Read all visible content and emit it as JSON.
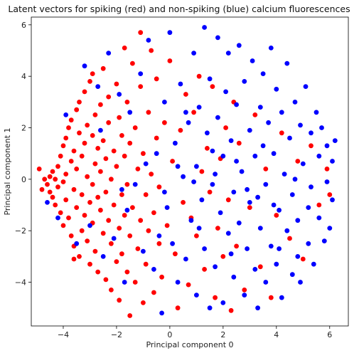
{
  "chart_data": {
    "type": "scatter",
    "title": "Latent vectors for spiking (red) and non-spiking (blue) calcium fluorescences",
    "xlabel": "Principal component 0",
    "ylabel": "Principal component 1",
    "xlim": [
      -5.2,
      6.7
    ],
    "ylim": [
      -5.7,
      6.3
    ],
    "xticks": [
      -4,
      -2,
      0,
      2,
      4,
      6
    ],
    "yticks": [
      -4,
      -2,
      0,
      2,
      4,
      6
    ],
    "grid": false,
    "series": [
      {
        "color": "#ff0000",
        "points": [
          [
            -4.7,
            0.0
          ],
          [
            -4.6,
            -0.2
          ],
          [
            -4.5,
            0.1
          ],
          [
            -4.5,
            -0.5
          ],
          [
            -4.4,
            0.3
          ],
          [
            -4.4,
            -0.7
          ],
          [
            -4.3,
            0.0
          ],
          [
            -4.3,
            -1.0
          ],
          [
            -4.2,
            0.5
          ],
          [
            -4.2,
            -0.3
          ],
          [
            -4.1,
            0.9
          ],
          [
            -4.1,
            -1.3
          ],
          [
            -4.0,
            1.3
          ],
          [
            -4.0,
            -0.1
          ],
          [
            -4.0,
            -1.8
          ],
          [
            -3.9,
            1.6
          ],
          [
            -3.9,
            0.2
          ],
          [
            -3.9,
            -0.8
          ],
          [
            -3.8,
            2.0
          ],
          [
            -3.8,
            -1.5
          ],
          [
            -3.7,
            2.3
          ],
          [
            -3.7,
            0.7
          ],
          [
            -3.7,
            -2.2
          ],
          [
            -3.6,
            1.1
          ],
          [
            -3.6,
            -0.4
          ],
          [
            -3.6,
            -2.6
          ],
          [
            -3.5,
            2.7
          ],
          [
            -3.5,
            0.4
          ],
          [
            -3.5,
            -1.1
          ],
          [
            -3.4,
            3.0
          ],
          [
            -3.4,
            1.8
          ],
          [
            -3.4,
            -3.0
          ],
          [
            -3.3,
            0.9
          ],
          [
            -3.3,
            -0.6
          ],
          [
            -3.3,
            -2.0
          ],
          [
            -3.2,
            3.4
          ],
          [
            -3.2,
            1.4
          ],
          [
            -3.2,
            -1.4
          ],
          [
            -3.1,
            2.1
          ],
          [
            -3.1,
            0.1
          ],
          [
            -3.1,
            -2.4
          ],
          [
            -3.0,
            3.8
          ],
          [
            -3.0,
            -0.9
          ],
          [
            -3.0,
            -3.3
          ],
          [
            -2.9,
            1.7
          ],
          [
            -2.9,
            -0.2
          ],
          [
            -2.9,
            -1.7
          ],
          [
            -2.8,
            2.5
          ],
          [
            -2.8,
            0.6
          ],
          [
            -2.8,
            -2.8
          ],
          [
            -2.7,
            -3.6
          ],
          [
            -2.7,
            1.2
          ],
          [
            -2.7,
            -0.7
          ],
          [
            -2.6,
            2.9
          ],
          [
            -2.6,
            0.3
          ],
          [
            -2.6,
            -1.2
          ],
          [
            -2.5,
            4.3
          ],
          [
            -2.5,
            1.5
          ],
          [
            -2.5,
            -2.1
          ],
          [
            -2.4,
            0.8
          ],
          [
            -2.4,
            -3.9
          ],
          [
            -2.4,
            -0.5
          ],
          [
            -2.3,
            2.2
          ],
          [
            -2.3,
            -1.6
          ],
          [
            -2.3,
            3.2
          ],
          [
            -2.2,
            0.0
          ],
          [
            -2.2,
            -2.5
          ],
          [
            -2.2,
            -4.3
          ],
          [
            -2.1,
            1.1
          ],
          [
            -2.1,
            -1.0
          ],
          [
            -2.0,
            3.7
          ],
          [
            -2.0,
            -3.2
          ],
          [
            -2.0,
            0.5
          ],
          [
            -1.9,
            -1.9
          ],
          [
            -1.9,
            2.4
          ],
          [
            -1.9,
            -4.7
          ],
          [
            -1.8,
            1.7
          ],
          [
            -1.8,
            -0.6
          ],
          [
            -1.8,
            -2.9
          ],
          [
            -1.7,
            5.1
          ],
          [
            -1.7,
            0.9
          ],
          [
            -1.7,
            -1.4
          ],
          [
            -1.6,
            3.0
          ],
          [
            -1.6,
            -3.6
          ],
          [
            -1.6,
            -0.2
          ],
          [
            -1.5,
            -5.3
          ],
          [
            -1.5,
            1.4
          ],
          [
            -1.5,
            -2.2
          ],
          [
            -1.4,
            4.5
          ],
          [
            -1.4,
            -1.1
          ],
          [
            -1.3,
            2.0
          ],
          [
            -1.3,
            -4.0
          ],
          [
            -1.2,
            0.4
          ],
          [
            -1.2,
            -2.7
          ],
          [
            -1.1,
            3.6
          ],
          [
            -1.1,
            -1.6
          ],
          [
            -1.0,
            -4.8
          ],
          [
            -1.0,
            1.0
          ],
          [
            -0.9,
            -0.6
          ],
          [
            -0.9,
            -3.3
          ],
          [
            -0.8,
            2.6
          ],
          [
            -0.8,
            -2.0
          ],
          [
            -0.7,
            5.0
          ],
          [
            -0.7,
            0.2
          ],
          [
            -0.6,
            -4.4
          ],
          [
            -0.6,
            -1.3
          ],
          [
            -0.5,
            3.9
          ],
          [
            -0.5,
            1.6
          ],
          [
            -0.4,
            -2.5
          ],
          [
            -0.4,
            -0.3
          ],
          [
            -0.3,
            -3.8
          ],
          [
            -0.2,
            2.2
          ],
          [
            -0.1,
            -1.8
          ],
          [
            0.0,
            4.6
          ],
          [
            0.1,
            0.7
          ],
          [
            0.2,
            -2.9
          ],
          [
            0.3,
            -5.0
          ],
          [
            0.4,
            1.9
          ],
          [
            0.5,
            -0.9
          ],
          [
            0.6,
            3.3
          ],
          [
            0.7,
            -4.1
          ],
          [
            0.8,
            -1.5
          ],
          [
            0.9,
            2.6
          ],
          [
            1.0,
            -2.2
          ],
          [
            1.1,
            4.0
          ],
          [
            1.2,
            0.3
          ],
          [
            1.3,
            -3.5
          ],
          [
            1.4,
            1.2
          ],
          [
            1.5,
            -0.5
          ],
          [
            1.6,
            3.6
          ],
          [
            1.7,
            -4.6
          ],
          [
            1.8,
            -1.9
          ],
          [
            1.9,
            0.8
          ],
          [
            2.0,
            -3.0
          ],
          [
            2.1,
            2.0
          ],
          [
            2.2,
            -0.8
          ],
          [
            2.3,
            -5.1
          ],
          [
            2.4,
            3.0
          ],
          [
            2.5,
            -2.6
          ],
          [
            2.6,
            1.4
          ],
          [
            2.8,
            -4.3
          ],
          [
            3.0,
            -1.1
          ],
          [
            3.2,
            2.5
          ],
          [
            3.4,
            -3.4
          ],
          [
            3.6,
            0.4
          ],
          [
            3.8,
            -4.6
          ],
          [
            4.0,
            -1.4
          ],
          [
            4.2,
            1.8
          ],
          [
            4.5,
            -2.3
          ],
          [
            4.8,
            0.7
          ],
          [
            5.0,
            -3.1
          ],
          [
            5.3,
            1.3
          ],
          [
            5.6,
            -1.0
          ],
          [
            5.9,
            0.4
          ],
          [
            6.0,
            -0.6
          ],
          [
            -4.9,
            0.4
          ],
          [
            -4.8,
            -0.4
          ],
          [
            -3.6,
            -3.1
          ],
          [
            -2.9,
            4.1
          ],
          [
            -1.1,
            5.7
          ]
        ]
      },
      {
        "color": "#0000ff",
        "points": [
          [
            -4.6,
            -0.9
          ],
          [
            -4.2,
            -1.5
          ],
          [
            -3.9,
            2.5
          ],
          [
            -3.5,
            -2.5
          ],
          [
            -3.2,
            4.4
          ],
          [
            -3.0,
            -1.8
          ],
          [
            -2.7,
            3.6
          ],
          [
            -2.5,
            -3.0
          ],
          [
            -2.3,
            4.9
          ],
          [
            -2.1,
            -2.3
          ],
          [
            -1.9,
            3.3
          ],
          [
            -1.7,
            -4.0
          ],
          [
            -1.5,
            2.6
          ],
          [
            -1.3,
            -0.2
          ],
          [
            -1.1,
            4.1
          ],
          [
            -1.0,
            -2.8
          ],
          [
            -0.8,
            5.4
          ],
          [
            -0.6,
            -3.5
          ],
          [
            -0.5,
            1.0
          ],
          [
            -0.3,
            -5.2
          ],
          [
            -0.2,
            3.0
          ],
          [
            -0.1,
            -1.1
          ],
          [
            0.0,
            5.7
          ],
          [
            0.1,
            -2.5
          ],
          [
            0.2,
            1.4
          ],
          [
            0.3,
            -4.0
          ],
          [
            0.4,
            3.7
          ],
          [
            0.5,
            0.1
          ],
          [
            0.6,
            -3.1
          ],
          [
            0.7,
            2.2
          ],
          [
            0.8,
            -1.6
          ],
          [
            0.9,
            4.9
          ],
          [
            1.0,
            0.5
          ],
          [
            1.0,
            -4.5
          ],
          [
            1.1,
            2.8
          ],
          [
            1.2,
            -0.8
          ],
          [
            1.3,
            5.9
          ],
          [
            1.3,
            -2.7
          ],
          [
            1.4,
            1.8
          ],
          [
            1.5,
            -5.0
          ],
          [
            1.5,
            3.9
          ],
          [
            1.6,
            -0.2
          ],
          [
            1.7,
            -3.4
          ],
          [
            1.8,
            2.4
          ],
          [
            1.8,
            5.5
          ],
          [
            1.9,
            -1.3
          ],
          [
            2.0,
            0.9
          ],
          [
            2.0,
            -4.8
          ],
          [
            2.1,
            3.4
          ],
          [
            2.2,
            -2.1
          ],
          [
            2.2,
            4.9
          ],
          [
            2.3,
            1.5
          ],
          [
            2.4,
            -0.5
          ],
          [
            2.4,
            -3.8
          ],
          [
            2.5,
            2.9
          ],
          [
            2.6,
            -1.7
          ],
          [
            2.6,
            5.2
          ],
          [
            2.7,
            0.3
          ],
          [
            2.8,
            -4.5
          ],
          [
            2.8,
            3.8
          ],
          [
            2.9,
            -2.7
          ],
          [
            3.0,
            1.9
          ],
          [
            3.0,
            -0.9
          ],
          [
            3.1,
            4.6
          ],
          [
            3.2,
            -3.5
          ],
          [
            3.2,
            0.9
          ],
          [
            3.3,
            -5.0
          ],
          [
            3.4,
            2.8
          ],
          [
            3.4,
            -1.9
          ],
          [
            3.5,
            4.1
          ],
          [
            3.6,
            -0.2
          ],
          [
            3.6,
            -4.0
          ],
          [
            3.7,
            2.2
          ],
          [
            3.8,
            -2.6
          ],
          [
            3.8,
            5.1
          ],
          [
            3.9,
            1.0
          ],
          [
            4.0,
            -3.3
          ],
          [
            4.0,
            3.5
          ],
          [
            4.1,
            -1.2
          ],
          [
            4.2,
            -4.6
          ],
          [
            4.2,
            2.6
          ],
          [
            4.3,
            0.2
          ],
          [
            4.4,
            -2.0
          ],
          [
            4.4,
            4.5
          ],
          [
            4.5,
            1.6
          ],
          [
            4.6,
            -3.7
          ],
          [
            4.6,
            -0.6
          ],
          [
            4.7,
            3.0
          ],
          [
            4.8,
            -1.6
          ],
          [
            4.9,
            2.1
          ],
          [
            4.9,
            -4.0
          ],
          [
            5.0,
            0.6
          ],
          [
            5.1,
            3.6
          ],
          [
            5.2,
            -2.5
          ],
          [
            5.3,
            1.8
          ],
          [
            5.3,
            -0.3
          ],
          [
            5.4,
            -3.3
          ],
          [
            5.5,
            2.6
          ],
          [
            5.6,
            -1.5
          ],
          [
            5.6,
            0.9
          ],
          [
            5.7,
            2.0
          ],
          [
            5.8,
            -2.4
          ],
          [
            5.9,
            -0.1
          ],
          [
            5.9,
            1.3
          ],
          [
            6.0,
            -1.9
          ],
          [
            6.1,
            0.7
          ],
          [
            6.1,
            -0.8
          ],
          [
            6.2,
            1.5
          ],
          [
            -1.8,
            -0.4
          ],
          [
            -0.4,
            -2.2
          ],
          [
            0.3,
            0.5
          ],
          [
            0.6,
            2.6
          ],
          [
            1.1,
            -1.9
          ],
          [
            1.7,
            0.2
          ],
          [
            2.3,
            -2.9
          ],
          [
            2.9,
            -0.4
          ],
          [
            3.5,
            1.3
          ],
          [
            4.1,
            -2.7
          ],
          [
            4.7,
            0.0
          ],
          [
            5.2,
            -1.1
          ],
          [
            -2.6,
            1.9
          ],
          [
            -1.6,
            -1.2
          ],
          [
            -0.9,
            0.6
          ],
          [
            -0.2,
            -0.5
          ],
          [
            0.9,
            -0.1
          ],
          [
            1.6,
            1.1
          ],
          [
            2.5,
            0.7
          ],
          [
            3.3,
            -0.7
          ],
          [
            3.9,
            -1.0
          ],
          [
            4.8,
            -3.0
          ]
        ]
      }
    ]
  }
}
